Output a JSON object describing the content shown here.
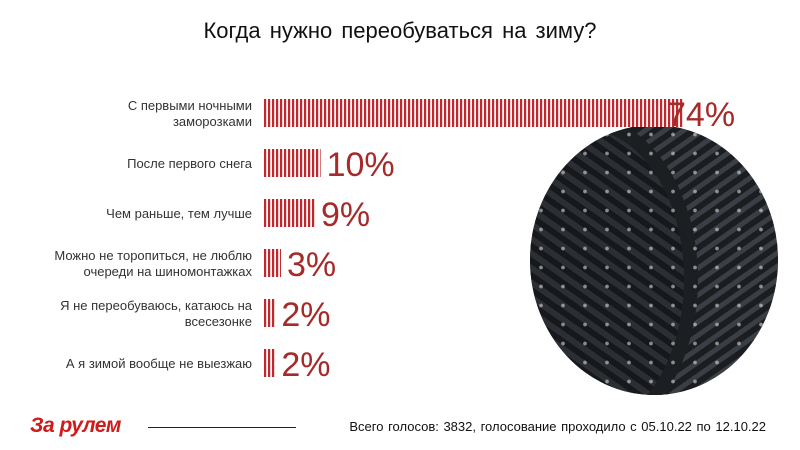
{
  "chart_data": {
    "type": "bar",
    "orientation": "horizontal",
    "title": "Когда нужно переобуваться на зиму?",
    "categories": [
      [
        "С первыми ночными",
        "заморозками"
      ],
      [
        "После первого снега"
      ],
      [
        "Чем раньше, тем лучше"
      ],
      [
        "Можно не торопиться, не люблю",
        "очереди на шиномонтажках"
      ],
      [
        "Я не переобуваюсь, катаюсь на",
        "всесезонке"
      ],
      [
        "А я зимой вообще не выезжаю"
      ]
    ],
    "values": [
      74,
      10,
      9,
      3,
      2,
      2
    ],
    "value_labels": [
      "74%",
      "10%",
      "9%",
      "3%",
      "2%",
      "2%"
    ],
    "bar_color": "#c0282d",
    "label_color": "#a52a2a",
    "xlim": [
      0,
      74
    ]
  },
  "brand": {
    "logo": "За рулем"
  },
  "footer": {
    "text": "Всего голосов: 3832, голосование проходило с 05.10.22 по 12.10.22"
  },
  "image": {
    "icon": "winter-tire-photo"
  }
}
